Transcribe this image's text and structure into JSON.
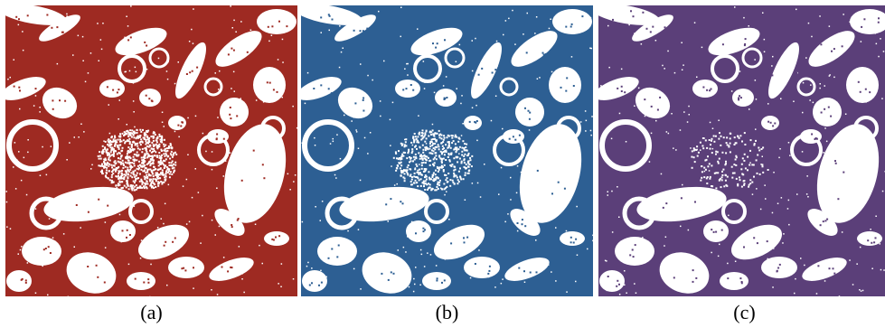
{
  "panels": [
    {
      "id": "a",
      "caption": "(a)",
      "foreground_color": "#9e2a22",
      "speckle_density": 0.55
    },
    {
      "id": "b",
      "caption": "(b)",
      "foreground_color": "#2d5f93",
      "speckle_density": 0.35
    },
    {
      "id": "c",
      "caption": "(c)",
      "foreground_color": "#5b3f79",
      "speckle_density": 0.12
    }
  ],
  "background_color": "#ffffff"
}
